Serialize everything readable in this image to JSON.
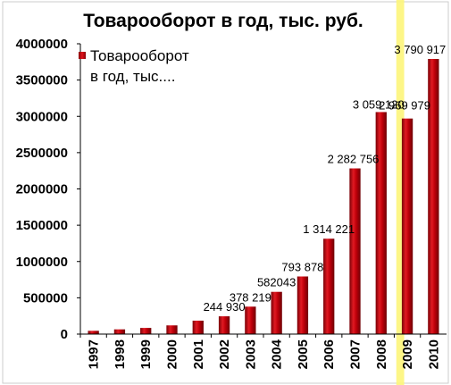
{
  "chart_data": {
    "type": "bar",
    "title": "Товарооборот в год, тыс. руб.",
    "legend": {
      "lines": [
        "Товарооборот",
        "в год, тыс...."
      ],
      "placement": "top-left"
    },
    "categories": [
      "1997",
      "1998",
      "1999",
      "2000",
      "2001",
      "2002",
      "2003",
      "2004",
      "2005",
      "2006",
      "2007",
      "2008",
      "2009",
      "2010"
    ],
    "series": [
      {
        "name": "Товарооборот в год, тыс....",
        "values": [
          45000,
          65000,
          85000,
          120000,
          185000,
          244930,
          378219,
          582043,
          793878,
          1314221,
          2282756,
          3059120,
          2969979,
          3790917
        ]
      }
    ],
    "data_labels": [
      "",
      "",
      "",
      "",
      "",
      "244 930",
      "378 219",
      "582043",
      "793 878",
      "1 314 221",
      "2 282 756",
      "3 059 120",
      "2 969 979",
      "3 790 917"
    ],
    "yticks": [
      "0",
      "500000",
      "1000000",
      "1500000",
      "2000000",
      "2500000",
      "3000000",
      "3500000",
      "4000000"
    ],
    "ylim": [
      0,
      4000000
    ],
    "grid": false,
    "bar_color": "#c0000a",
    "highlight_color": "#fdf57a",
    "highlight_category": "2009"
  }
}
